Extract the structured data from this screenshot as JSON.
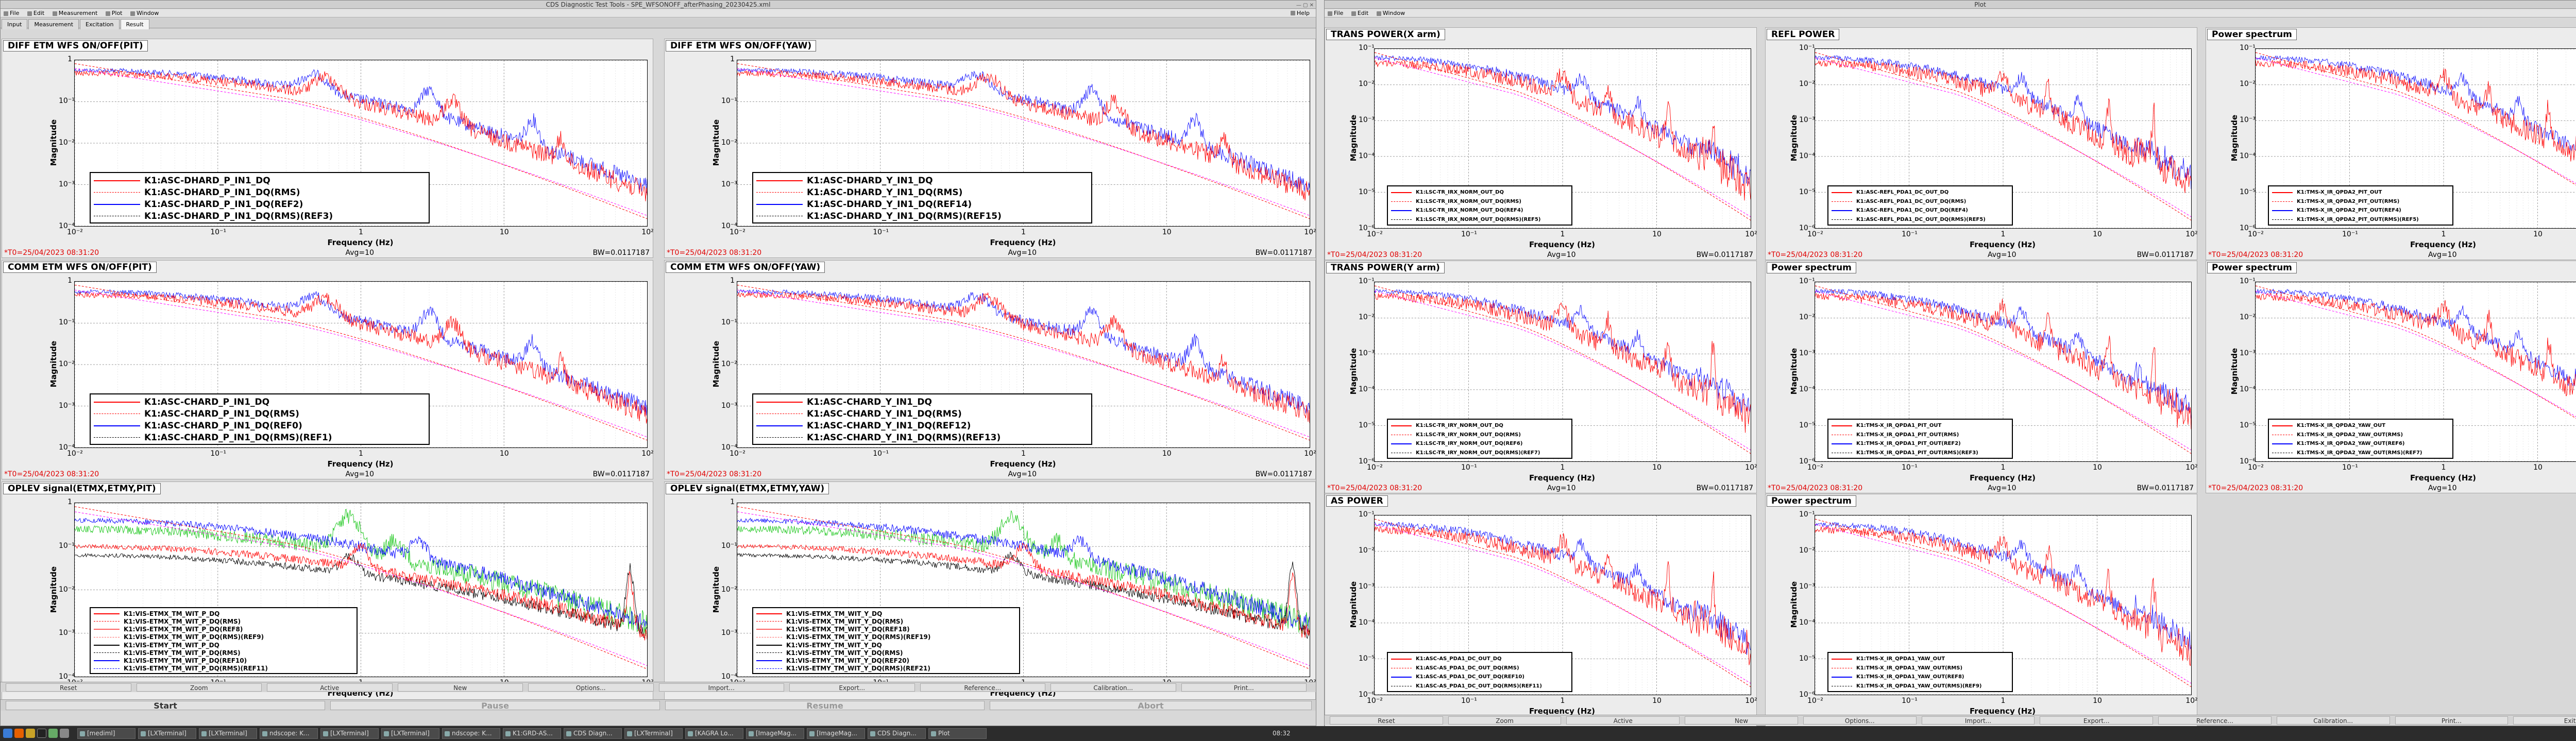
{
  "left_window": {
    "title": "CDS Diagnostic Test Tools - SPE_WFSONOFF_afterPhasing_20230425.xml",
    "menu": [
      "File",
      "Edit",
      "Measurement",
      "Plot",
      "Window"
    ],
    "help": "Help",
    "tabs": [
      "Input",
      "Measurement",
      "Excitation",
      "Result"
    ],
    "active_tab": "Result",
    "buttons": [
      "Reset",
      "Zoom",
      "Active",
      "New",
      "Options...",
      "Import...",
      "Export...",
      "Reference...",
      "Calibration...",
      "Print..."
    ],
    "start": "Start",
    "pause": "Pause",
    "resume": "Resume",
    "abort": "Abort"
  },
  "right_window": {
    "title": "Plot",
    "menu": [
      "File",
      "Edit",
      "Window"
    ],
    "buttons": [
      "Reset",
      "Zoom",
      "Active",
      "New",
      "Options...",
      "Import...",
      "Export...",
      "Reference...",
      "Calibration...",
      "Print...",
      "Exit"
    ]
  },
  "common": {
    "ylabel": "Magnitude",
    "xlabel": "Frequency (Hz)",
    "t0": "*T0=25/04/2023 08:31:20",
    "avg": "Avg=10",
    "bw": "BW=0.0117187",
    "xticks": [
      "10⁻²",
      "10⁻¹",
      "1",
      "10",
      "10²"
    ]
  },
  "colors": {
    "red": "#ff0000",
    "blue": "#0000ff",
    "black": "#000000",
    "green": "#00c000",
    "magenta": "#ff00ff",
    "ref_red": "#ff6060"
  },
  "panels": [
    {
      "id": "L1",
      "title": "DIFF ETM WFS ON/OFF(PIT)",
      "yticks": [
        "1",
        "10⁻¹",
        "10⁻²",
        "10⁻³",
        "10⁻⁴"
      ],
      "legend": [
        "K1:ASC-DHARD_P_IN1_DQ",
        "K1:ASC-DHARD_P_IN1_DQ(RMS)",
        "K1:ASC-DHARD_P_IN1_DQ(REF2)",
        "K1:ASC-DHARD_P_IN1_DQ(RMS)(REF3)"
      ]
    },
    {
      "id": "L2",
      "title": "DIFF ETM WFS ON/OFF(YAW)",
      "yticks": [
        "1",
        "10⁻¹",
        "10⁻²",
        "10⁻³",
        "10⁻⁴"
      ],
      "legend": [
        "K1:ASC-DHARD_Y_IN1_DQ",
        "K1:ASC-DHARD_Y_IN1_DQ(RMS)",
        "K1:ASC-DHARD_Y_IN1_DQ(REF14)",
        "K1:ASC-DHARD_Y_IN1_DQ(RMS)(REF15)"
      ]
    },
    {
      "id": "L3",
      "title": "COMM ETM WFS ON/OFF(PIT)",
      "yticks": [
        "1",
        "10⁻¹",
        "10⁻²",
        "10⁻³",
        "10⁻⁴"
      ],
      "legend": [
        "K1:ASC-CHARD_P_IN1_DQ",
        "K1:ASC-CHARD_P_IN1_DQ(RMS)",
        "K1:ASC-CHARD_P_IN1_DQ(REF0)",
        "K1:ASC-CHARD_P_IN1_DQ(RMS)(REF1)"
      ]
    },
    {
      "id": "L4",
      "title": "COMM ETM WFS ON/OFF(YAW)",
      "yticks": [
        "1",
        "10⁻¹",
        "10⁻²",
        "10⁻³",
        "10⁻⁴"
      ],
      "legend": [
        "K1:ASC-CHARD_Y_IN1_DQ",
        "K1:ASC-CHARD_Y_IN1_DQ(RMS)",
        "K1:ASC-CHARD_Y_IN1_DQ(REF12)",
        "K1:ASC-CHARD_Y_IN1_DQ(RMS)(REF13)"
      ]
    },
    {
      "id": "L5",
      "title": "OPLEV signal(ETMX,ETMY,PIT)",
      "yticks": [
        "1",
        "10⁻¹",
        "10⁻²",
        "10⁻³",
        "10⁻⁴"
      ],
      "legend": [
        "K1:VIS-ETMX_TM_WIT_P_DQ",
        "K1:VIS-ETMX_TM_WIT_P_DQ(RMS)",
        "K1:VIS-ETMX_TM_WIT_P_DQ(REF8)",
        "K1:VIS-ETMX_TM_WIT_P_DQ(RMS)(REF9)",
        "K1:VIS-ETMY_TM_WIT_P_DQ",
        "K1:VIS-ETMY_TM_WIT_P_DQ(RMS)",
        "K1:VIS-ETMY_TM_WIT_P_DQ(REF10)",
        "K1:VIS-ETMY_TM_WIT_P_DQ(RMS)(REF11)"
      ]
    },
    {
      "id": "L6",
      "title": "OPLEV signal(ETMX,ETMY,YAW)",
      "yticks": [
        "1",
        "10⁻¹",
        "10⁻²",
        "10⁻³",
        "10⁻⁴"
      ],
      "legend": [
        "K1:VIS-ETMX_TM_WIT_Y_DQ",
        "K1:VIS-ETMX_TM_WIT_Y_DQ(RMS)",
        "K1:VIS-ETMX_TM_WIT_Y_DQ(REF18)",
        "K1:VIS-ETMX_TM_WIT_Y_DQ(RMS)(REF19)",
        "K1:VIS-ETMY_TM_WIT_Y_DQ",
        "K1:VIS-ETMY_TM_WIT_Y_DQ(RMS)",
        "K1:VIS-ETMY_TM_WIT_Y_DQ(REF20)",
        "K1:VIS-ETMY_TM_WIT_Y_DQ(RMS)(REF21)"
      ]
    },
    {
      "id": "R1",
      "title": "TRANS POWER(X arm)",
      "yticks": [
        "10⁻¹",
        "10⁻²",
        "10⁻³",
        "10⁻⁴",
        "10⁻⁵",
        "10⁻⁶"
      ],
      "legend": [
        "K1:LSC-TR_IRX_NORM_OUT_DQ",
        "K1:LSC-TR_IRX_NORM_OUT_DQ(RMS)",
        "K1:LSC-TR_IRX_NORM_OUT_DQ(REF4)",
        "K1:LSC-TR_IRX_NORM_OUT_DQ(RMS)(REF5)"
      ]
    },
    {
      "id": "R2",
      "title": "REFL POWER",
      "yticks": [
        "10⁻¹",
        "10⁻²",
        "10⁻³",
        "10⁻⁴",
        "10⁻⁵",
        "10⁻⁶"
      ],
      "legend": [
        "K1:ASC-REFL_PDA1_DC_OUT_DQ",
        "K1:ASC-REFL_PDA1_DC_OUT_DQ(RMS)",
        "K1:ASC-REFL_PDA1_DC_OUT_DQ(REF4)",
        "K1:ASC-REFL_PDA1_DC_OUT_DQ(RMS)(REF5)"
      ]
    },
    {
      "id": "R3",
      "title": "Power spectrum",
      "yticks": [
        "10⁻¹",
        "10⁻²",
        "10⁻³",
        "10⁻⁴",
        "10⁻⁵",
        "10⁻⁶"
      ],
      "legend": [
        "K1:TMS-X_IR_QPDA2_PIT_OUT",
        "K1:TMS-X_IR_QPDA2_PIT_OUT(RMS)",
        "K1:TMS-X_IR_QPDA2_PIT_OUT(REF4)",
        "K1:TMS-X_IR_QPDA2_PIT_OUT(RMS)(REF5)"
      ]
    },
    {
      "id": "R4",
      "title": "TRANS POWER(Y arm)",
      "yticks": [
        "10⁻¹",
        "10⁻²",
        "10⁻³",
        "10⁻⁴",
        "10⁻⁵",
        "10⁻⁶"
      ],
      "legend": [
        "K1:LSC-TR_IRY_NORM_OUT_DQ",
        "K1:LSC-TR_IRY_NORM_OUT_DQ(RMS)",
        "K1:LSC-TR_IRY_NORM_OUT_DQ(REF6)",
        "K1:LSC-TR_IRY_NORM_OUT_DQ(RMS)(REF7)"
      ]
    },
    {
      "id": "R5",
      "title": "Power spectrum",
      "yticks": [
        "10⁻¹",
        "10⁻²",
        "10⁻³",
        "10⁻⁴",
        "10⁻⁵",
        "10⁻⁶"
      ],
      "legend": [
        "K1:TMS-X_IR_QPDA1_PIT_OUT",
        "K1:TMS-X_IR_QPDA1_PIT_OUT(RMS)",
        "K1:TMS-X_IR_QPDA1_PIT_OUT(REF2)",
        "K1:TMS-X_IR_QPDA1_PIT_OUT(RMS)(REF3)"
      ]
    },
    {
      "id": "R6",
      "title": "Power spectrum",
      "yticks": [
        "10⁻¹",
        "10⁻²",
        "10⁻³",
        "10⁻⁴",
        "10⁻⁵",
        "10⁻⁶"
      ],
      "legend": [
        "K1:TMS-X_IR_QPDA2_YAW_OUT",
        "K1:TMS-X_IR_QPDA2_YAW_OUT(RMS)",
        "K1:TMS-X_IR_QPDA2_YAW_OUT(REF6)",
        "K1:TMS-X_IR_QPDA2_YAW_OUT(RMS)(REF7)"
      ]
    },
    {
      "id": "R7",
      "title": "AS POWER",
      "yticks": [
        "10⁻¹",
        "10⁻²",
        "10⁻³",
        "10⁻⁴",
        "10⁻⁵",
        "10⁻⁶"
      ],
      "legend": [
        "K1:ASC-AS_PDA1_DC_OUT_DQ",
        "K1:ASC-AS_PDA1_DC_OUT_DQ(RMS)",
        "K1:ASC-AS_PDA1_DC_OUT_DQ(REF10)",
        "K1:ASC-AS_PDA1_DC_OUT_DQ(RMS)(REF11)"
      ]
    },
    {
      "id": "R8",
      "title": "Power spectrum",
      "yticks": [
        "10⁻¹",
        "10⁻²",
        "10⁻³",
        "10⁻⁴",
        "10⁻⁵",
        "10⁻⁶"
      ],
      "legend": [
        "K1:TMS-X_IR_QPDA1_YAW_OUT",
        "K1:TMS-X_IR_QPDA1_YAW_OUT(RMS)",
        "K1:TMS-X_IR_QPDA1_YAW_OUT(REF8)",
        "K1:TMS-X_IR_QPDA1_YAW_OUT(RMS)(REF9)"
      ]
    }
  ],
  "taskbar": {
    "items": [
      "[mediml]",
      "[LXTerminal]",
      "[LXTerminal]",
      "ndscope: K...",
      "[LXTerminal]",
      "[LXTerminal]",
      "ndscope: K...",
      "K1:GRD-AS...",
      "CDS Diagn...",
      "[LXTerminal]",
      "[KAGRA Lo...",
      "[ImageMag...",
      "[ImageMag...",
      "CDS Diagn...",
      "Plot"
    ],
    "clock": "08:32"
  }
}
